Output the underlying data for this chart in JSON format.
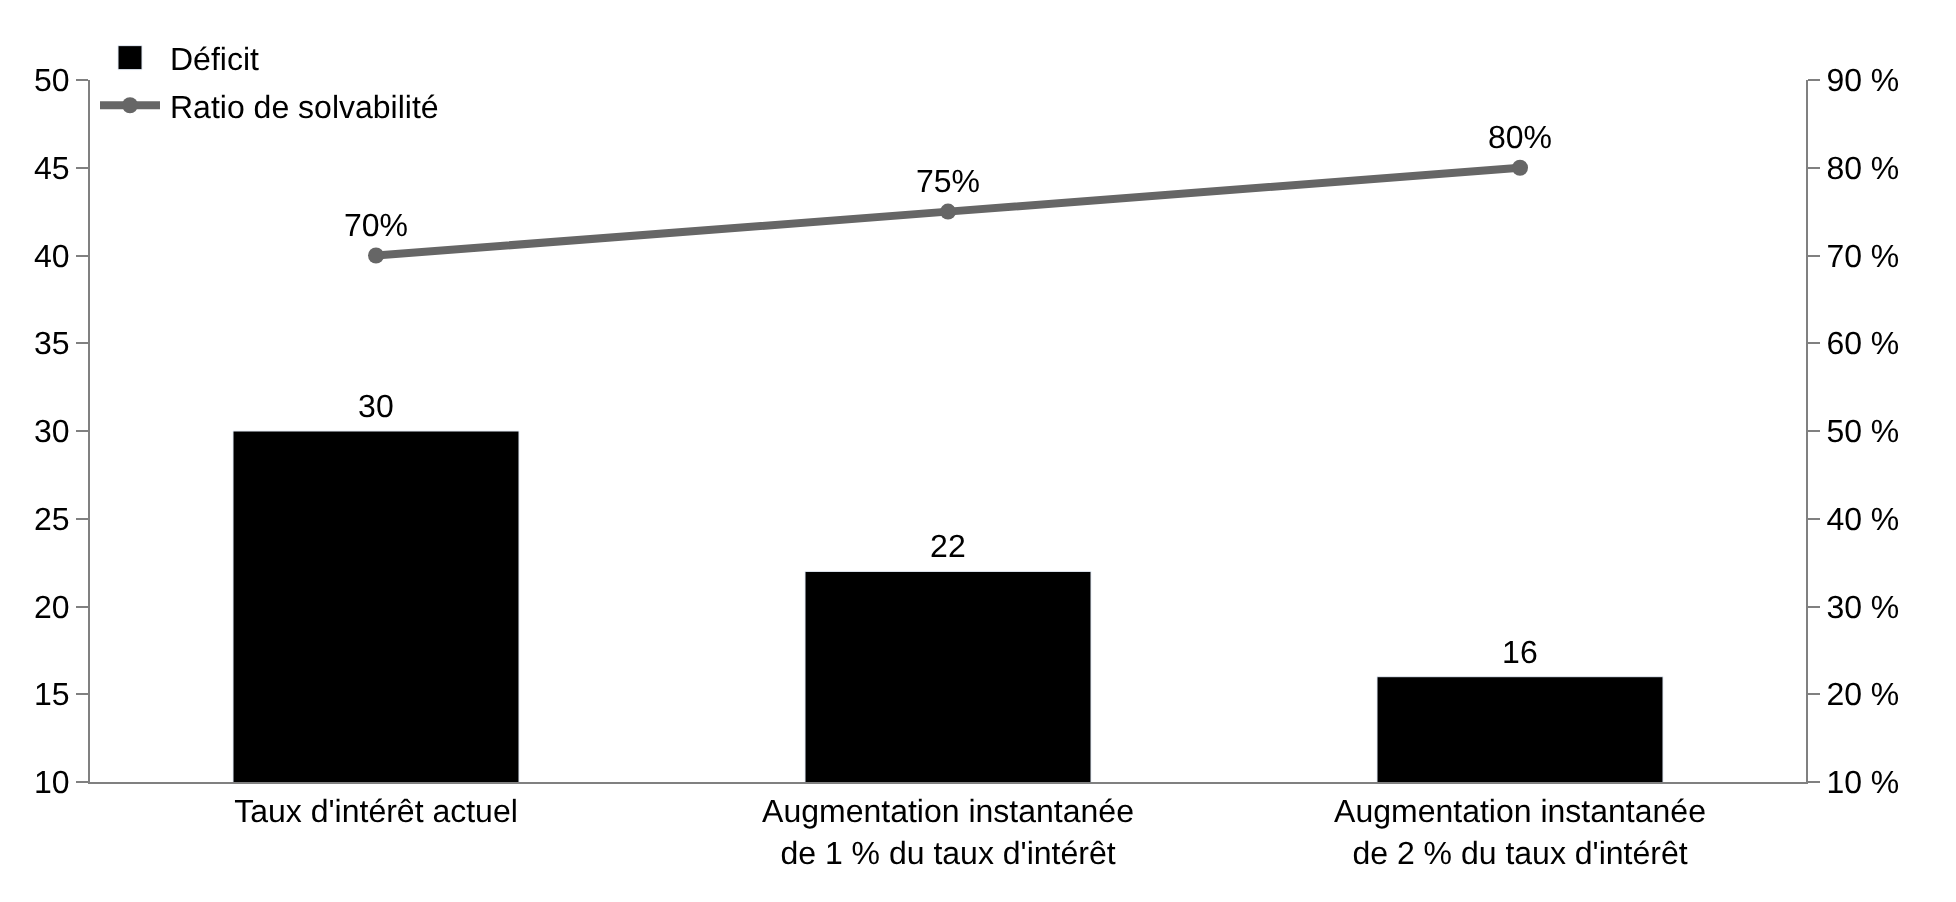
{
  "chart_data": {
    "type": "bar",
    "categories": [
      "Taux d'intérêt actuel",
      "Augmentation instantanée\nde 1 % du taux d'intérêt",
      "Augmentation instantanée\nde 2 % du taux d'intérêt"
    ],
    "series": [
      {
        "name": "Déficit",
        "color": "#000000",
        "values": [
          30,
          22,
          16
        ],
        "value_labels": [
          "30",
          "22",
          "16"
        ]
      },
      {
        "name": "Ratio de solvabilité",
        "type": "line",
        "axis": "y2",
        "color": "#666666",
        "marker": "circle",
        "line_style": "solid",
        "values": [
          70,
          75,
          80
        ],
        "value_labels": [
          "70%",
          "75%",
          "80%"
        ]
      }
    ],
    "ylim": [
      10,
      50
    ],
    "yticks": [
      10,
      15,
      20,
      25,
      30,
      35,
      40,
      45,
      50
    ],
    "y2lim": [
      10,
      90
    ],
    "y2ticks": [
      {
        "value": 10,
        "label": "10 %"
      },
      {
        "value": 20,
        "label": "20 %"
      },
      {
        "value": 30,
        "label": "30 %"
      },
      {
        "value": 40,
        "label": "40 %"
      },
      {
        "value": 50,
        "label": "50 %"
      },
      {
        "value": 60,
        "label": "60 %"
      },
      {
        "value": 70,
        "label": "70 %"
      },
      {
        "value": 80,
        "label": "80 %"
      },
      {
        "value": 90,
        "label": "90 %"
      }
    ],
    "legend": "top left"
  }
}
